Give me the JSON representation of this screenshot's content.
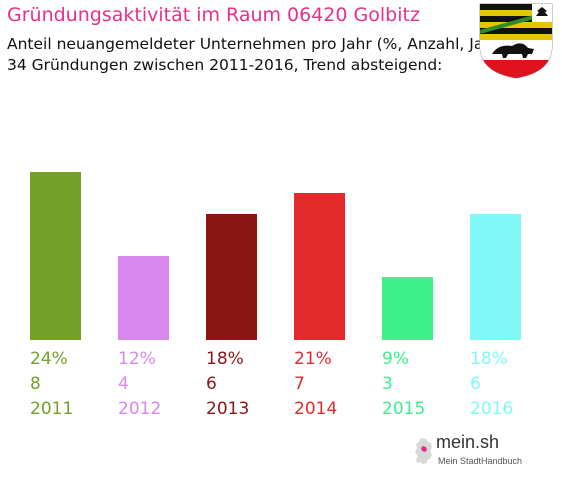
{
  "header": {
    "title": "Gründungsaktivität im Raum 06420 Golbitz",
    "subtitle_line1": "Anteil neuangemeldeter Unternehmen pro Jahr (%, Anzahl, Jahr)",
    "subtitle_line2": "34 Gründungen zwischen 2011-2016, Trend absteigend:"
  },
  "chart_data": {
    "type": "bar",
    "categories": [
      "2011",
      "2012",
      "2013",
      "2014",
      "2015",
      "2016"
    ],
    "values": [
      24,
      12,
      18,
      21,
      9,
      18
    ],
    "counts": [
      "8",
      "4",
      "6",
      "7",
      "3",
      "6"
    ],
    "percent_labels": [
      "24%",
      "12%",
      "18%",
      "21%",
      "9%",
      "18%"
    ],
    "colors": [
      "#74a128",
      "#d887ef",
      "#8b1515",
      "#e32b2b",
      "#3df08a",
      "#80f8f8"
    ],
    "ylim": [
      0,
      24
    ],
    "grid": false
  },
  "brand": {
    "name": "mein.sh",
    "tagline": "Mein StadtHandbuch"
  },
  "icons": {
    "coat_of_arms": "coat-of-arms-icon",
    "map": "germany-map-icon"
  }
}
